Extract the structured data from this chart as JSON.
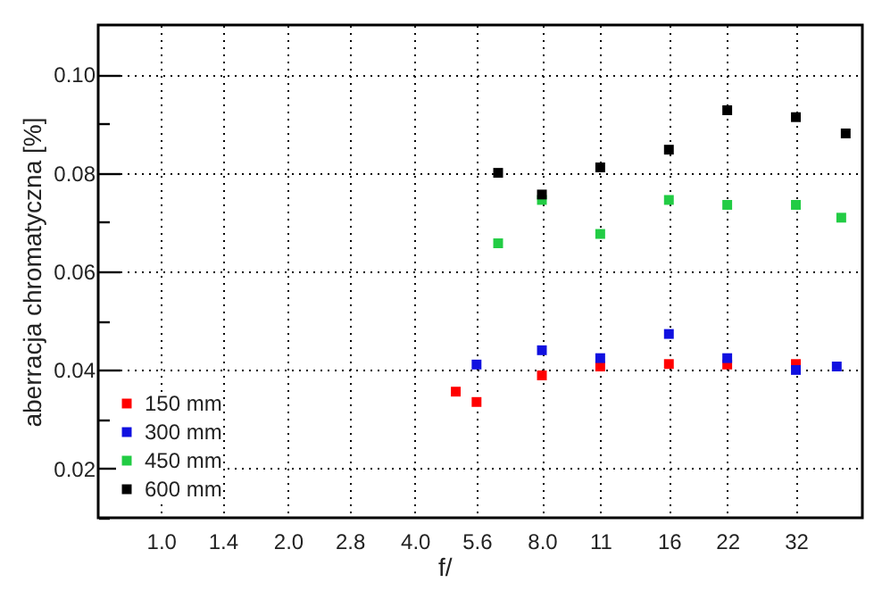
{
  "chart_data": {
    "type": "scatter",
    "xlabel": "f/",
    "ylabel": "aberracja chromatyczna [%]",
    "xlim": [
      0.71,
      46
    ],
    "ylim": [
      0.01,
      0.11
    ],
    "log": "x",
    "xticks": [
      {
        "value": 1,
        "label": "1.0"
      },
      1.4,
      {
        "value": 2,
        "label": "2.0"
      },
      2.8,
      {
        "value": 4,
        "label": "4.0"
      },
      5.6,
      {
        "value": 8,
        "label": "8.0"
      },
      11,
      16,
      22,
      32
    ],
    "yticks": [
      {
        "value": 0.01,
        "label": null
      },
      0.02,
      {
        "value": 0.03,
        "label": null
      },
      0.04,
      {
        "value": 0.05,
        "label": null
      },
      0.06,
      {
        "value": 0.07,
        "label": null
      },
      0.08,
      {
        "value": 0.09,
        "label": null
      },
      {
        "value": 0.1,
        "label": "0.10"
      }
    ],
    "grid": true,
    "legend": "bottom left",
    "marker": "square",
    "series": [
      {
        "name": "150 mm",
        "color": "#ff0000",
        "x": [
          5.0,
          5.6,
          8,
          11,
          16,
          22,
          32
        ],
        "values": [
          0.0356,
          0.0335,
          0.0389,
          0.0407,
          0.0412,
          0.0411,
          0.0412
        ]
      },
      {
        "name": "300 mm",
        "color": "#1010e0",
        "x": [
          5.6,
          8,
          11,
          16,
          22,
          32,
          40
        ],
        "values": [
          0.0411,
          0.044,
          0.0424,
          0.0473,
          0.0424,
          0.04,
          0.0407
        ]
      },
      {
        "name": "450 mm",
        "color": "#22cc44",
        "x": [
          6.3,
          8,
          11,
          16,
          22,
          32,
          41
        ],
        "values": [
          0.0657,
          0.0745,
          0.0676,
          0.0745,
          0.0735,
          0.0735,
          0.0709
        ]
      },
      {
        "name": "600 mm",
        "color": "#000000",
        "x": [
          6.3,
          8,
          11,
          16,
          22,
          32,
          42
        ],
        "values": [
          0.08,
          0.0756,
          0.0811,
          0.0847,
          0.0927,
          0.0913,
          0.088
        ]
      }
    ]
  }
}
